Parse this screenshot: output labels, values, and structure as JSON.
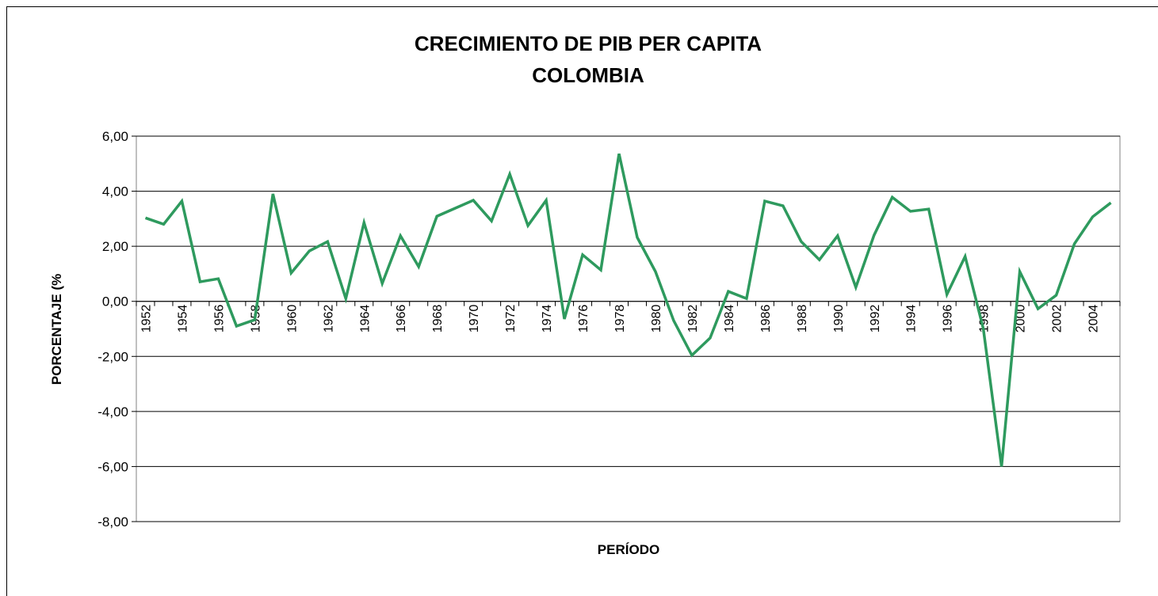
{
  "chart_data": {
    "type": "line",
    "title": "CRECIMIENTO DE PIB PER CAPITA",
    "subtitle": "COLOMBIA",
    "x_label": "PERÍODO",
    "y_label": "PORCENTAJE (%",
    "categories": [
      "1952",
      null,
      "1954",
      null,
      "1956",
      null,
      "1958",
      null,
      "1960",
      null,
      "1962",
      null,
      "1964",
      null,
      "1966",
      null,
      "1968",
      null,
      "1970",
      null,
      "1972",
      null,
      "1974",
      null,
      "1976",
      null,
      "1978",
      null,
      "1980",
      null,
      "1982",
      null,
      "1984",
      null,
      "1986",
      null,
      "1988",
      null,
      "1990",
      null,
      "1992",
      null,
      "1994",
      null,
      "1996",
      null,
      "1998",
      null,
      "2000",
      null,
      "2002",
      null,
      "2004",
      null
    ],
    "series": [
      {
        "name": "PIB per capita",
        "color": "#2e9a5e",
        "values": [
          3.03,
          2.8,
          3.64,
          0.71,
          0.82,
          -0.9,
          -0.67,
          3.9,
          1.03,
          1.83,
          2.17,
          0.1,
          2.86,
          0.65,
          2.38,
          1.26,
          3.09,
          3.38,
          3.67,
          2.92,
          4.62,
          2.75,
          3.67,
          -0.64,
          1.69,
          1.14,
          5.36,
          2.32,
          1.08,
          -0.7,
          -1.96,
          -1.33,
          0.36,
          0.1,
          3.64,
          3.47,
          2.17,
          1.51,
          2.38,
          0.51,
          2.4,
          3.78,
          3.27,
          3.35,
          0.25,
          1.63,
          -1.0,
          -6.0,
          1.08,
          -0.27,
          0.22,
          2.09,
          3.07,
          3.58
        ]
      }
    ],
    "ylim": [
      -8,
      6
    ],
    "yticks": [
      {
        "value": -8,
        "label": "-8,00"
      },
      {
        "value": -6,
        "label": "-6,00"
      },
      {
        "value": -4,
        "label": "-4,00"
      },
      {
        "value": -2,
        "label": "-2,00"
      },
      {
        "value": 0,
        "label": "0,00"
      },
      {
        "value": 2,
        "label": "2,00"
      },
      {
        "value": 4,
        "label": "4,00"
      },
      {
        "value": 6,
        "label": "6,00"
      }
    ],
    "grid": true
  }
}
